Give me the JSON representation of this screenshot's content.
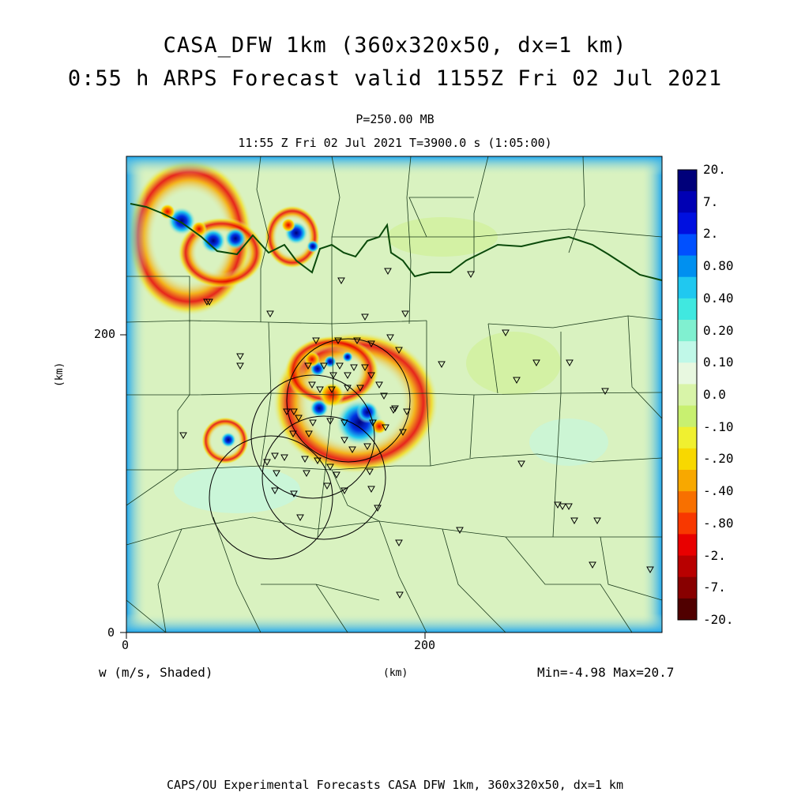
{
  "title": {
    "line1": "CASA_DFW 1km (360x320x50, dx=1 km)",
    "line2": "0:55 h ARPS Forecast valid 1155Z Fri 02 Jul 2021"
  },
  "subtitle": {
    "pressure": "P=250.00 MB",
    "time": "11:55 Z Fri 02 Jul 2021    T=3900.0 s (1:05:00)"
  },
  "axes": {
    "y_ticks": [
      "200",
      "0"
    ],
    "x_ticks": [
      "0",
      "200"
    ],
    "y_label": "(km)",
    "x_label": "(km)"
  },
  "field": {
    "label": "w (m/s, Shaded)",
    "minmax": "Min=-4.98 Max=20.7"
  },
  "colorbar": {
    "labels": [
      "20.",
      "7.",
      "2.",
      "0.80",
      "0.40",
      "0.20",
      "0.10",
      "0.0",
      "-.10",
      "-.20",
      "-.40",
      "-.80",
      "-2.",
      "-7.",
      "-20."
    ],
    "colors": [
      "#00007a",
      "#0000b4",
      "#0010e0",
      "#0050ff",
      "#0090f0",
      "#20c8f0",
      "#40e8e0",
      "#80f0d0",
      "#c0f8e8",
      "#e8f8e0",
      "#d8f4a8",
      "#c8f070",
      "#f0f030",
      "#f8d800",
      "#f8a800",
      "#f87000",
      "#f83800",
      "#e80000",
      "#b80000",
      "#880000",
      "#500000"
    ]
  },
  "footer": "CAPS/OU Experimental Forecasts  CASA DFW 1km, 360x320x50, dx=1 km",
  "colors": {
    "background_field": "#d9f2c0",
    "border_frame": "#40c8f0",
    "state_border": "#0a4a0a"
  }
}
